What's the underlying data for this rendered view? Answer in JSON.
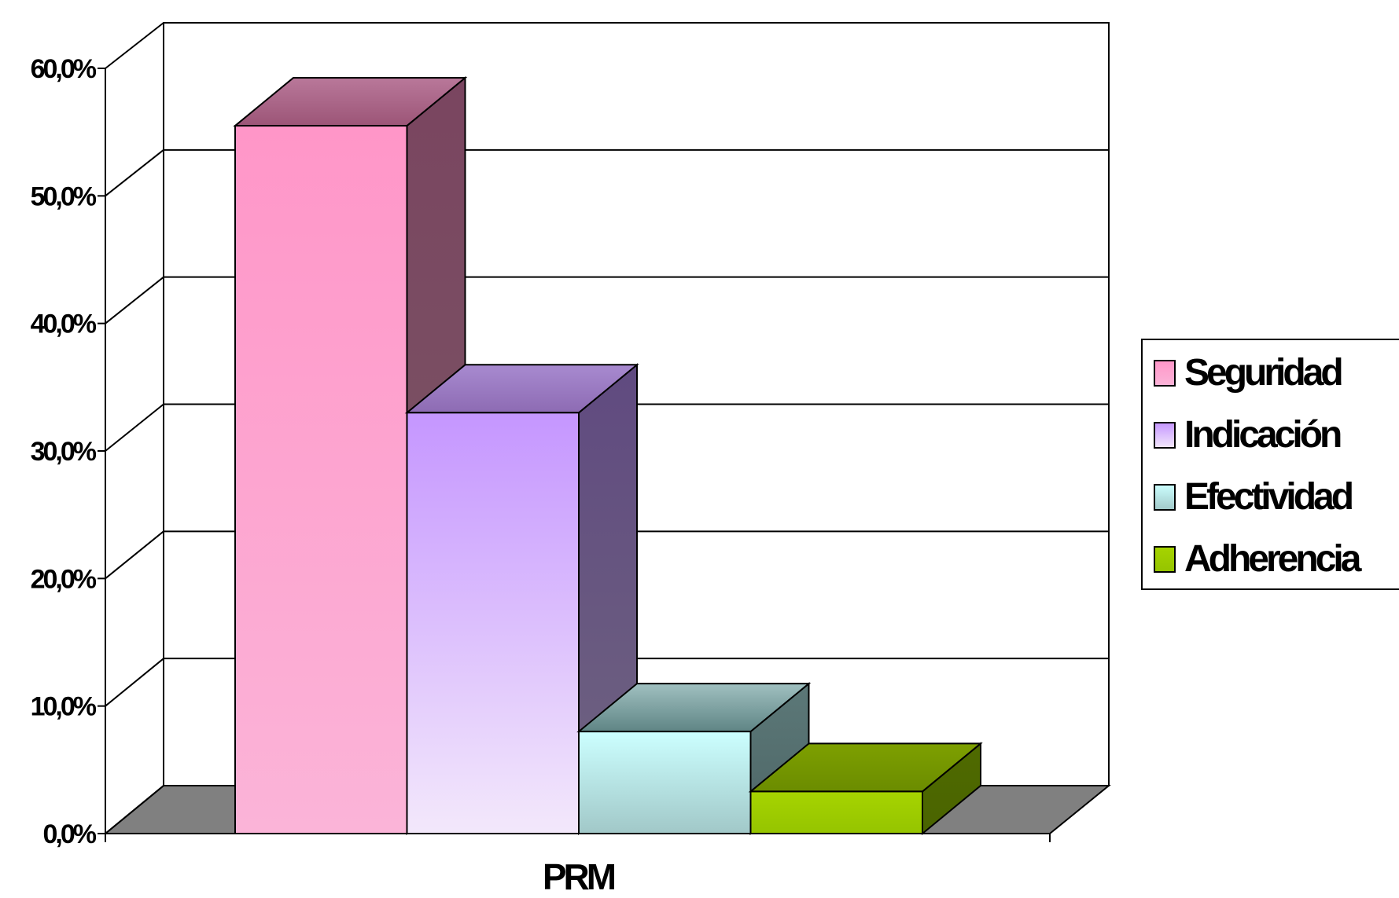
{
  "chart_data": {
    "type": "bar",
    "style": "3d-clustered-column",
    "categories": [
      "PRM"
    ],
    "series": [
      {
        "name": "Seguridad",
        "values": [
          55.5
        ],
        "color": "#f9a7cf"
      },
      {
        "name": "Indicación",
        "values": [
          33.0
        ],
        "color": "#d2a6f6"
      },
      {
        "name": "Efectividad",
        "values": [
          8.0
        ],
        "color": "#b4e4e8"
      },
      {
        "name": "Adherencia",
        "values": [
          3.3
        ],
        "color": "#99c800"
      }
    ],
    "xlabel": "PRM",
    "ylabel": "",
    "ylim": [
      0,
      60
    ],
    "yticks": [
      "0,0%",
      "10,0%",
      "20,0%",
      "30,0%",
      "40,0%",
      "50,0%",
      "60,0%"
    ],
    "grid": true,
    "legend": "right"
  }
}
